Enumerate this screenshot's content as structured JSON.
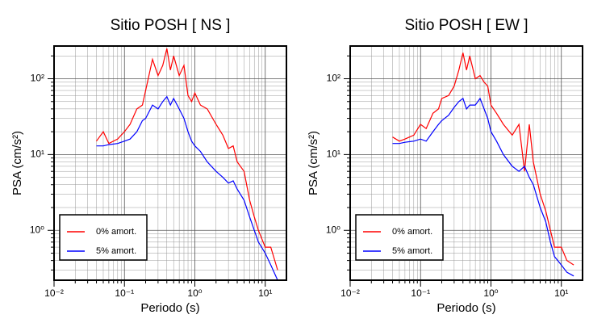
{
  "chart_data": [
    {
      "type": "line",
      "title": "Sitio POSH [ NS ]",
      "xlabel": "Periodo (s)",
      "ylabel": "PSA (cm/s²)",
      "log_x": true,
      "log_y": true,
      "grid": true,
      "legend": "lower left",
      "xlim": [
        0.01,
        20
      ],
      "ylim": [
        0.22,
        270
      ],
      "xticks": [
        {
          "value": 0.01,
          "label": "10⁻²"
        },
        {
          "value": 0.1,
          "label": "10⁻¹"
        },
        {
          "value": 1,
          "label": "10⁰"
        },
        {
          "value": 10,
          "label": "10¹"
        }
      ],
      "yticks": [
        {
          "value": 1,
          "label": "10⁰"
        },
        {
          "value": 10,
          "label": "10¹"
        },
        {
          "value": 100,
          "label": "10²"
        }
      ],
      "x": [
        0.04,
        0.05,
        0.06,
        0.08,
        0.1,
        0.12,
        0.15,
        0.18,
        0.2,
        0.25,
        0.3,
        0.35,
        0.4,
        0.45,
        0.5,
        0.6,
        0.7,
        0.8,
        0.9,
        1.0,
        1.2,
        1.5,
        2,
        2.5,
        3,
        3.5,
        4,
        5,
        6,
        7,
        8,
        10,
        12,
        15
      ],
      "series": [
        {
          "name": "0% amort.",
          "color": "#ff0000",
          "values": [
            15,
            20,
            14,
            16,
            20,
            25,
            40,
            45,
            70,
            180,
            110,
            150,
            250,
            130,
            200,
            110,
            150,
            60,
            50,
            65,
            45,
            40,
            25,
            18,
            12,
            13,
            8,
            6,
            2.5,
            1.5,
            1.0,
            0.6,
            0.6,
            0.3
          ]
        },
        {
          "name": "5% amort.",
          "color": "#0000ff",
          "values": [
            13,
            13,
            13.5,
            14,
            15,
            16,
            20,
            28,
            30,
            45,
            40,
            50,
            58,
            45,
            55,
            40,
            30,
            20,
            15,
            13,
            11,
            8,
            6,
            5,
            4.2,
            4.5,
            3.5,
            2.5,
            1.5,
            1.0,
            0.7,
            0.5,
            0.35,
            0.22
          ]
        }
      ]
    },
    {
      "type": "line",
      "title": "Sitio POSH [ EW ]",
      "xlabel": "Periodo (s)",
      "ylabel": "PSA (cm/s²)",
      "log_x": true,
      "log_y": true,
      "grid": true,
      "legend": "lower left",
      "xlim": [
        0.01,
        20
      ],
      "ylim": [
        0.22,
        270
      ],
      "xticks": [
        {
          "value": 0.01,
          "label": "10⁻²"
        },
        {
          "value": 0.1,
          "label": "10⁻¹"
        },
        {
          "value": 1,
          "label": "10⁰"
        },
        {
          "value": 10,
          "label": "10¹"
        }
      ],
      "yticks": [
        {
          "value": 1,
          "label": "10⁰"
        },
        {
          "value": 10,
          "label": "10¹"
        },
        {
          "value": 100,
          "label": "10²"
        }
      ],
      "x": [
        0.04,
        0.05,
        0.06,
        0.08,
        0.1,
        0.12,
        0.15,
        0.18,
        0.2,
        0.25,
        0.3,
        0.35,
        0.4,
        0.45,
        0.5,
        0.6,
        0.7,
        0.8,
        0.9,
        1.0,
        1.2,
        1.5,
        2,
        2.5,
        3,
        3.5,
        4,
        5,
        6,
        7,
        8,
        10,
        12,
        15
      ],
      "series": [
        {
          "name": "0% amort.",
          "color": "#ff0000",
          "values": [
            17,
            15,
            16,
            18,
            25,
            22,
            35,
            40,
            55,
            60,
            80,
            130,
            220,
            130,
            200,
            100,
            110,
            90,
            80,
            45,
            35,
            25,
            18,
            25,
            6,
            25,
            8,
            3,
            1.8,
            1.0,
            0.6,
            0.6,
            0.4,
            0.35
          ]
        },
        {
          "name": "5% amort.",
          "color": "#0000ff",
          "values": [
            14,
            14,
            14.5,
            15,
            16,
            15,
            20,
            25,
            28,
            33,
            42,
            50,
            55,
            40,
            45,
            45,
            55,
            40,
            30,
            20,
            15,
            10,
            7,
            6,
            7,
            5,
            4,
            2,
            1.3,
            0.7,
            0.45,
            0.35,
            0.28,
            0.25
          ]
        }
      ]
    }
  ]
}
